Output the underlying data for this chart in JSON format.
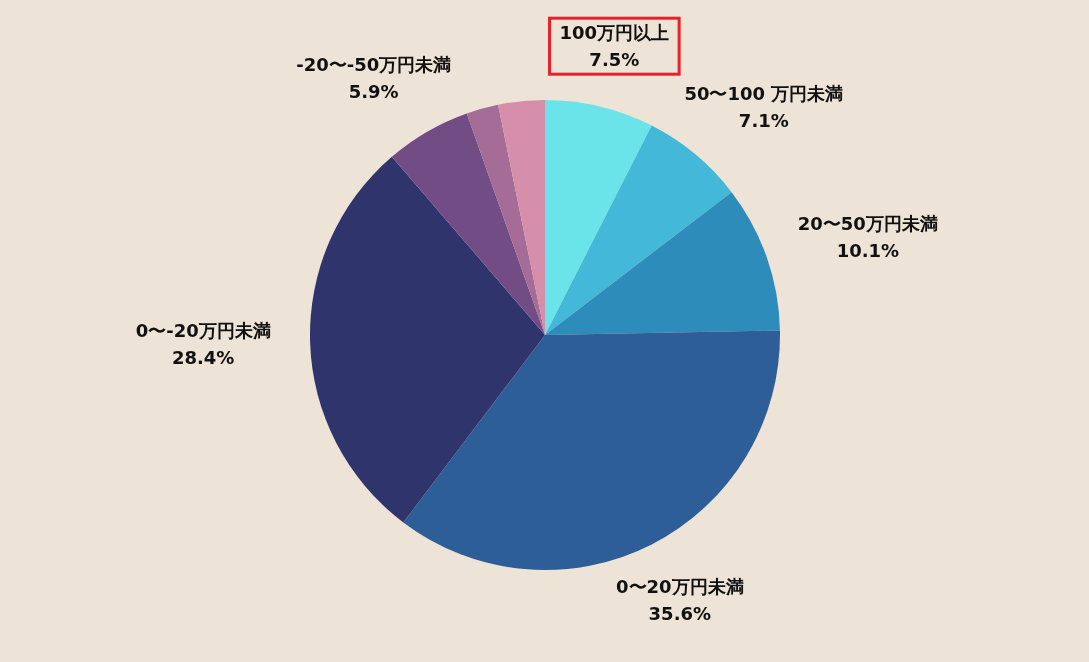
{
  "chart_data": {
    "type": "pie",
    "categories": [
      "100万円以上",
      "50〜100 万円未満",
      "20〜50万円未満",
      "0〜20万円未満",
      "0〜-20万円未満",
      "-20〜-50万円未満",
      null,
      null
    ],
    "values": [
      7.5,
      7.1,
      10.1,
      35.6,
      28.4,
      5.9,
      2.2,
      3.2
    ],
    "value_labels": [
      "7.5%",
      "7.1%",
      "10.1%",
      "35.6%",
      "28.4%",
      "5.9%",
      null,
      null
    ],
    "colors": [
      "#6ae3e9",
      "#44b8d8",
      "#2e8cbb",
      "#2e5e98",
      "#30346c",
      "#724c84",
      "#a46c96",
      "#d68fab"
    ]
  }
}
